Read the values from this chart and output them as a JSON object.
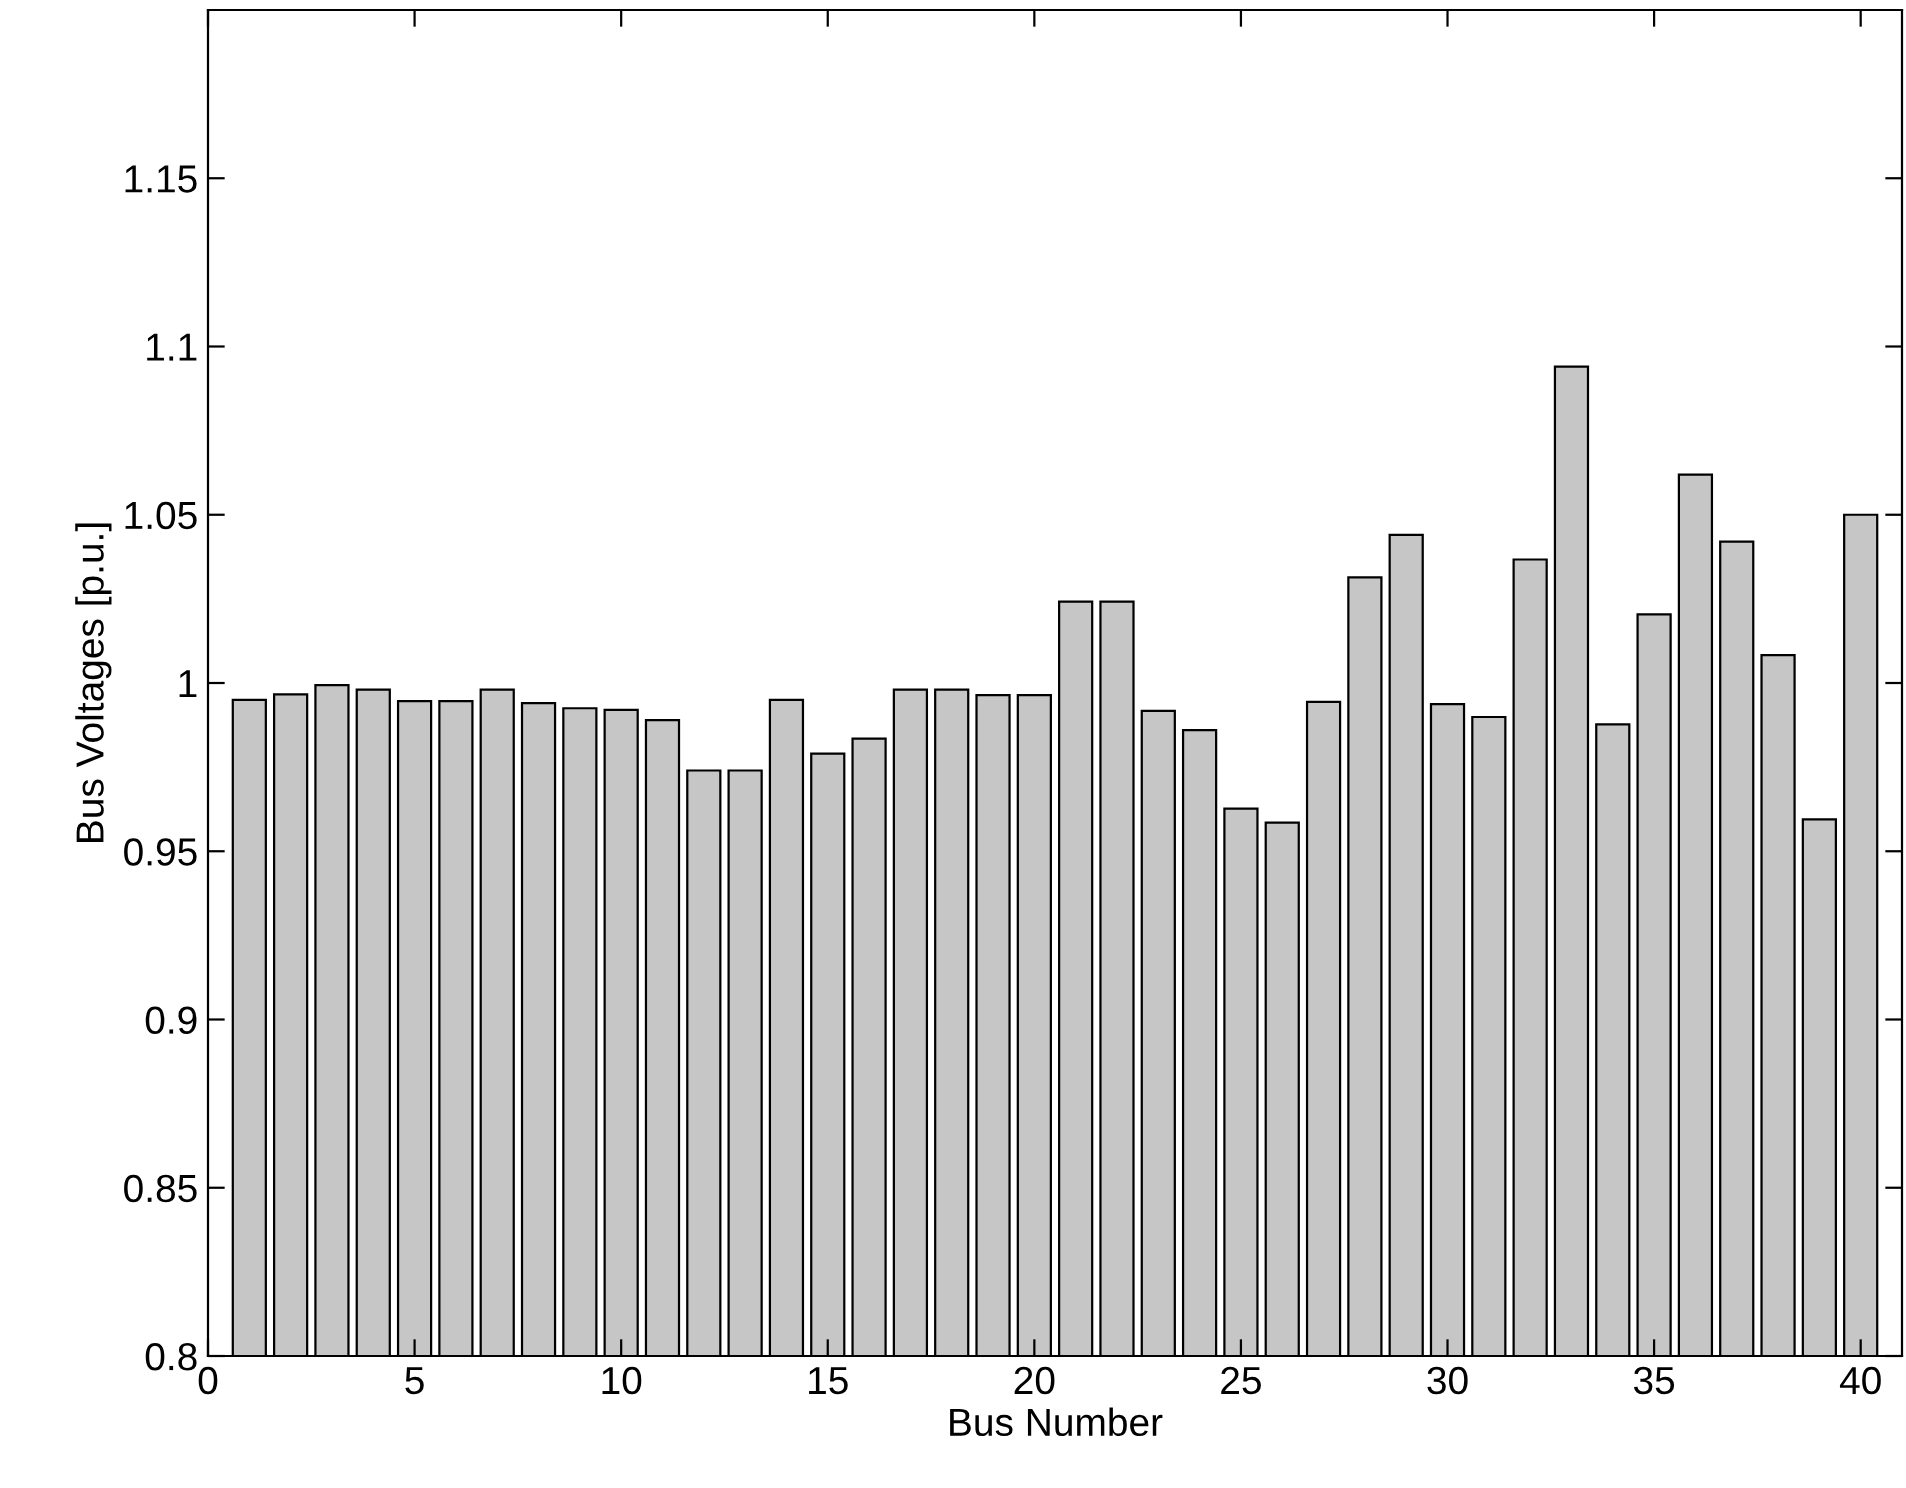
{
  "chart_data": {
    "type": "bar",
    "xlabel": "Bus Number",
    "ylabel": "Bus Voltages [p.u.]",
    "x": [
      1,
      2,
      3,
      4,
      5,
      6,
      7,
      8,
      9,
      10,
      11,
      12,
      13,
      14,
      15,
      16,
      17,
      18,
      19,
      20,
      21,
      22,
      23,
      24,
      25,
      26,
      27,
      28,
      29,
      30,
      31,
      32,
      33,
      34,
      35,
      36,
      37,
      38,
      39,
      40
    ],
    "values": [
      0.995,
      0.9966,
      0.9994,
      0.998,
      0.9946,
      0.9946,
      0.998,
      0.994,
      0.9925,
      0.992,
      0.989,
      0.974,
      0.974,
      0.995,
      0.979,
      0.9835,
      0.998,
      0.998,
      0.9964,
      0.9964,
      1.0242,
      1.0242,
      0.9917,
      0.986,
      0.9627,
      0.9585,
      0.9944,
      1.0314,
      1.044,
      0.9937,
      0.9899,
      1.0367,
      1.094,
      0.9877,
      1.0204,
      1.0619,
      1.042,
      1.0083,
      0.9595,
      1.05
    ],
    "color": "#c6c6c6",
    "xlim": [
      0,
      41
    ],
    "xticks": [
      0,
      5,
      10,
      15,
      20,
      25,
      30,
      35,
      40
    ],
    "ylim": [
      0.8,
      1.2
    ],
    "yticks": [
      0.8,
      0.85,
      0.9,
      0.95,
      1,
      1.05,
      1.1,
      1.15
    ],
    "grid": false,
    "legend": false
  }
}
